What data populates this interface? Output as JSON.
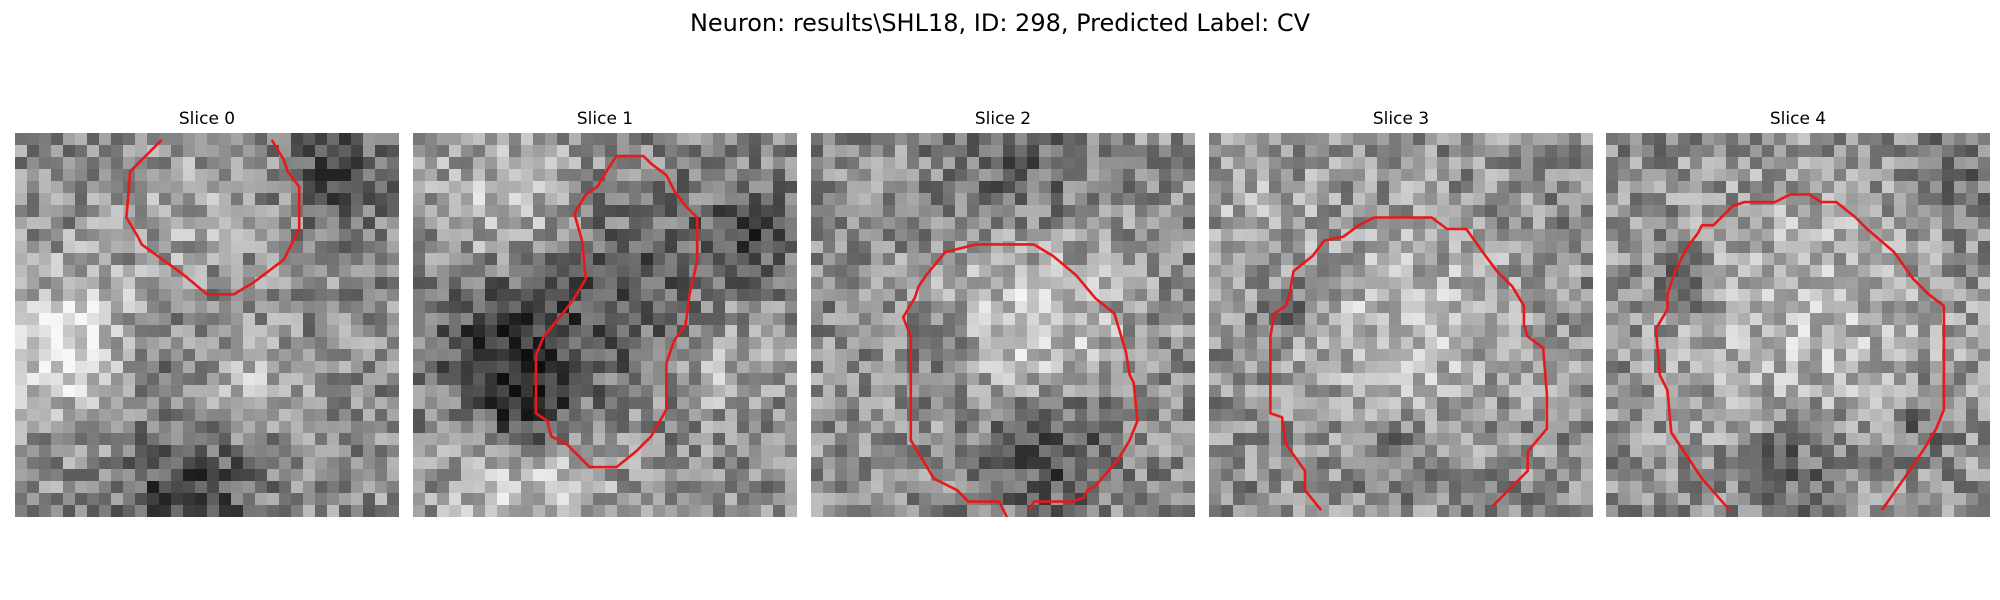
{
  "figure": {
    "title": "Neuron: results\\SHL18, ID: 298, Predicted Label: CV"
  },
  "colors": {
    "contour": "#e8191a",
    "background": "#ffffff"
  },
  "slices": [
    {
      "title": "Slice 0",
      "seed": 11,
      "bright_blobs": [
        [
          0.15,
          0.55,
          0.14,
          0.95
        ],
        [
          0.6,
          0.65,
          0.08,
          0.6
        ],
        [
          0.5,
          0.2,
          0.12,
          0.35
        ]
      ],
      "dark_blobs": [
        [
          0.45,
          0.95,
          0.12,
          0.8
        ],
        [
          0.85,
          0.1,
          0.1,
          0.6
        ],
        [
          0.35,
          0.6,
          0.08,
          0.5
        ]
      ],
      "contour": [
        [
          0.38,
          0.02
        ],
        [
          0.3,
          0.1
        ],
        [
          0.29,
          0.22
        ],
        [
          0.32,
          0.27
        ],
        [
          0.33,
          0.29
        ],
        [
          0.44,
          0.37
        ],
        [
          0.5,
          0.42
        ],
        [
          0.57,
          0.42
        ],
        [
          0.62,
          0.39
        ],
        [
          0.7,
          0.33
        ],
        [
          0.74,
          0.25
        ],
        [
          0.74,
          0.14
        ],
        [
          0.71,
          0.1
        ],
        [
          0.7,
          0.07
        ],
        [
          0.67,
          0.02
        ]
      ]
    },
    {
      "title": "Slice 1",
      "seed": 23,
      "bright_blobs": [
        [
          0.25,
          0.2,
          0.14,
          0.6
        ],
        [
          0.3,
          0.9,
          0.15,
          0.7
        ],
        [
          0.8,
          0.6,
          0.1,
          0.5
        ]
      ],
      "dark_blobs": [
        [
          0.25,
          0.55,
          0.15,
          0.8
        ],
        [
          0.3,
          0.72,
          0.08,
          0.9
        ],
        [
          0.58,
          0.4,
          0.18,
          0.45
        ],
        [
          0.88,
          0.25,
          0.08,
          0.6
        ]
      ],
      "contour": [
        [
          0.53,
          0.06
        ],
        [
          0.6,
          0.06
        ],
        [
          0.62,
          0.08
        ],
        [
          0.66,
          0.11
        ],
        [
          0.68,
          0.15
        ],
        [
          0.71,
          0.19
        ],
        [
          0.74,
          0.22
        ],
        [
          0.74,
          0.33
        ],
        [
          0.73,
          0.38
        ],
        [
          0.72,
          0.42
        ],
        [
          0.71,
          0.5
        ],
        [
          0.71,
          0.49
        ],
        [
          0.71,
          0.5
        ],
        [
          0.68,
          0.54
        ],
        [
          0.66,
          0.6
        ],
        [
          0.66,
          0.72
        ],
        [
          0.62,
          0.79
        ],
        [
          0.58,
          0.83
        ],
        [
          0.53,
          0.87
        ],
        [
          0.46,
          0.87
        ],
        [
          0.4,
          0.81
        ],
        [
          0.36,
          0.79
        ],
        [
          0.35,
          0.75
        ],
        [
          0.32,
          0.73
        ],
        [
          0.32,
          0.58
        ],
        [
          0.34,
          0.53
        ],
        [
          0.39,
          0.47
        ],
        [
          0.42,
          0.43
        ],
        [
          0.45,
          0.38
        ],
        [
          0.44,
          0.28
        ],
        [
          0.42,
          0.21
        ],
        [
          0.45,
          0.16
        ],
        [
          0.48,
          0.14
        ],
        [
          0.51,
          0.09
        ],
        [
          0.53,
          0.06
        ]
      ]
    },
    {
      "title": "Slice 2",
      "seed": 37,
      "bright_blobs": [
        [
          0.58,
          0.52,
          0.17,
          0.75
        ]
      ],
      "dark_blobs": [
        [
          0.62,
          0.82,
          0.12,
          0.75
        ],
        [
          0.35,
          0.6,
          0.06,
          0.5
        ],
        [
          0.55,
          0.08,
          0.12,
          0.45
        ]
      ],
      "contour": [
        [
          0.51,
          1.0
        ],
        [
          0.49,
          0.96
        ],
        [
          0.41,
          0.96
        ],
        [
          0.38,
          0.93
        ],
        [
          0.32,
          0.9
        ],
        [
          0.29,
          0.85
        ],
        [
          0.26,
          0.8
        ],
        [
          0.26,
          0.53
        ],
        [
          0.24,
          0.48
        ],
        [
          0.27,
          0.43
        ],
        [
          0.28,
          0.4
        ],
        [
          0.3,
          0.37
        ],
        [
          0.35,
          0.31
        ],
        [
          0.43,
          0.29
        ],
        [
          0.58,
          0.29
        ],
        [
          0.63,
          0.32
        ],
        [
          0.69,
          0.37
        ],
        [
          0.74,
          0.43
        ],
        [
          0.79,
          0.47
        ],
        [
          0.82,
          0.57
        ],
        [
          0.83,
          0.63
        ],
        [
          0.84,
          0.65
        ],
        [
          0.85,
          0.75
        ],
        [
          0.83,
          0.8
        ],
        [
          0.8,
          0.85
        ],
        [
          0.74,
          0.92
        ],
        [
          0.72,
          0.93
        ],
        [
          0.71,
          0.95
        ],
        [
          0.68,
          0.96
        ],
        [
          0.58,
          0.96
        ],
        [
          0.57,
          0.98
        ]
      ]
    },
    {
      "title": "Slice 3",
      "seed": 51,
      "bright_blobs": [
        [
          0.5,
          0.5,
          0.22,
          0.55
        ],
        [
          0.1,
          0.15,
          0.1,
          0.35
        ]
      ],
      "dark_blobs": [
        [
          0.5,
          0.82,
          0.08,
          0.4
        ],
        [
          0.23,
          0.45,
          0.05,
          0.55
        ]
      ],
      "contour": [
        [
          0.29,
          0.98
        ],
        [
          0.25,
          0.93
        ],
        [
          0.25,
          0.88
        ],
        [
          0.2,
          0.81
        ],
        [
          0.19,
          0.74
        ],
        [
          0.16,
          0.73
        ],
        [
          0.16,
          0.53
        ],
        [
          0.17,
          0.47
        ],
        [
          0.2,
          0.45
        ],
        [
          0.21,
          0.42
        ],
        [
          0.22,
          0.36
        ],
        [
          0.27,
          0.32
        ],
        [
          0.3,
          0.28
        ],
        [
          0.35,
          0.27
        ],
        [
          0.39,
          0.24
        ],
        [
          0.43,
          0.22
        ],
        [
          0.46,
          0.22
        ],
        [
          0.51,
          0.22
        ],
        [
          0.58,
          0.22
        ],
        [
          0.62,
          0.25
        ],
        [
          0.67,
          0.25
        ],
        [
          0.72,
          0.32
        ],
        [
          0.75,
          0.36
        ],
        [
          0.79,
          0.4
        ],
        [
          0.82,
          0.45
        ],
        [
          0.82,
          0.5
        ],
        [
          0.83,
          0.53
        ],
        [
          0.87,
          0.56
        ],
        [
          0.88,
          0.68
        ],
        [
          0.88,
          0.77
        ],
        [
          0.83,
          0.83
        ],
        [
          0.83,
          0.88
        ],
        [
          0.8,
          0.91
        ],
        [
          0.74,
          0.97
        ]
      ]
    },
    {
      "title": "Slice 4",
      "seed": 67,
      "bright_blobs": [
        [
          0.52,
          0.5,
          0.26,
          0.55
        ]
      ],
      "dark_blobs": [
        [
          0.5,
          0.85,
          0.1,
          0.5
        ],
        [
          0.2,
          0.4,
          0.05,
          0.55
        ],
        [
          0.82,
          0.75,
          0.06,
          0.45
        ],
        [
          0.9,
          0.12,
          0.07,
          0.45
        ]
      ],
      "contour": [
        [
          0.32,
          0.98
        ],
        [
          0.25,
          0.9
        ],
        [
          0.17,
          0.78
        ],
        [
          0.16,
          0.67
        ],
        [
          0.14,
          0.63
        ],
        [
          0.13,
          0.51
        ],
        [
          0.16,
          0.46
        ],
        [
          0.16,
          0.42
        ],
        [
          0.18,
          0.36
        ],
        [
          0.21,
          0.3
        ],
        [
          0.24,
          0.26
        ],
        [
          0.25,
          0.24
        ],
        [
          0.28,
          0.24
        ],
        [
          0.32,
          0.2
        ],
        [
          0.33,
          0.19
        ],
        [
          0.36,
          0.18
        ],
        [
          0.44,
          0.18
        ],
        [
          0.48,
          0.16
        ],
        [
          0.53,
          0.16
        ],
        [
          0.56,
          0.18
        ],
        [
          0.6,
          0.18
        ],
        [
          0.65,
          0.22
        ],
        [
          0.68,
          0.25
        ],
        [
          0.75,
          0.31
        ],
        [
          0.8,
          0.38
        ],
        [
          0.84,
          0.42
        ],
        [
          0.88,
          0.45
        ],
        [
          0.88,
          0.72
        ],
        [
          0.86,
          0.77
        ],
        [
          0.83,
          0.82
        ],
        [
          0.79,
          0.88
        ],
        [
          0.72,
          0.98
        ]
      ]
    }
  ]
}
